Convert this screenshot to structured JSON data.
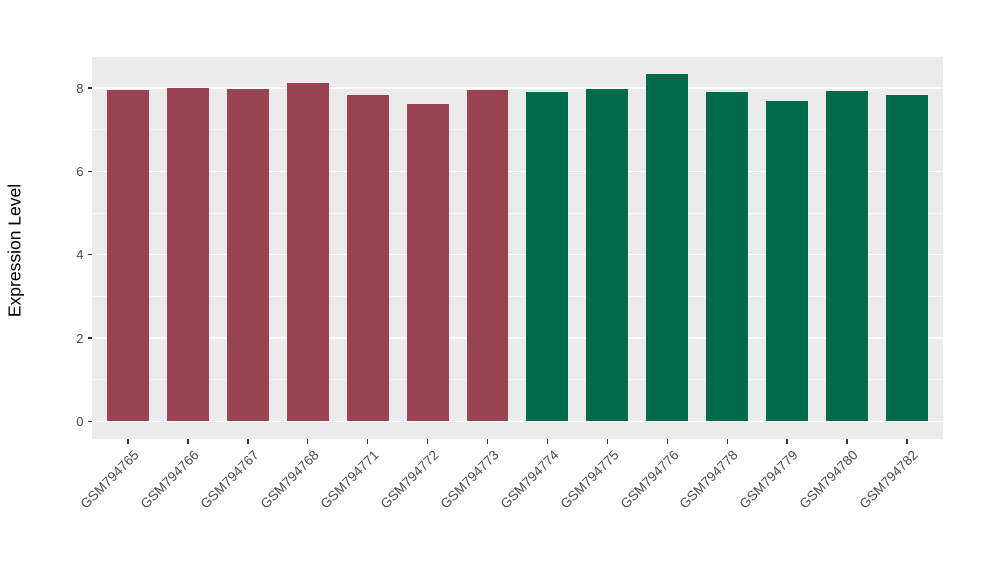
{
  "chart_data": {
    "type": "bar",
    "title": "",
    "xlabel": "",
    "ylabel": "Expression Level",
    "categories": [
      "GSM794765",
      "GSM794766",
      "GSM794767",
      "GSM794768",
      "GSM794771",
      "GSM794772",
      "GSM794773",
      "GSM794774",
      "GSM794775",
      "GSM794776",
      "GSM794778",
      "GSM794779",
      "GSM794780",
      "GSM794782"
    ],
    "values": [
      7.95,
      8.0,
      7.97,
      8.13,
      7.84,
      7.62,
      7.95,
      7.91,
      7.97,
      8.33,
      7.91,
      7.68,
      7.93,
      7.84
    ],
    "bar_groups": [
      "group1",
      "group1",
      "group1",
      "group1",
      "group1",
      "group1",
      "group1",
      "group2",
      "group2",
      "group2",
      "group2",
      "group2",
      "group2",
      "group2"
    ],
    "group_colors": {
      "group1": "#9A4453",
      "group2": "#006B4A"
    },
    "yticks": [
      0,
      2,
      4,
      6,
      8
    ],
    "minor_yticks": [
      1,
      3,
      5,
      7
    ],
    "ylim": [
      -0.42,
      8.745
    ],
    "bar_width_ratio": 0.7,
    "grid": true,
    "legend": false,
    "panel_bg": "#EBEBEB",
    "major_grid_color": "#FFFFFF",
    "minor_grid_color": "rgba(255,255,255,0.65)",
    "tick_mark_color": "#333333",
    "tick_label_color": "#4D4D4D",
    "axis_title_color": "#000000"
  }
}
